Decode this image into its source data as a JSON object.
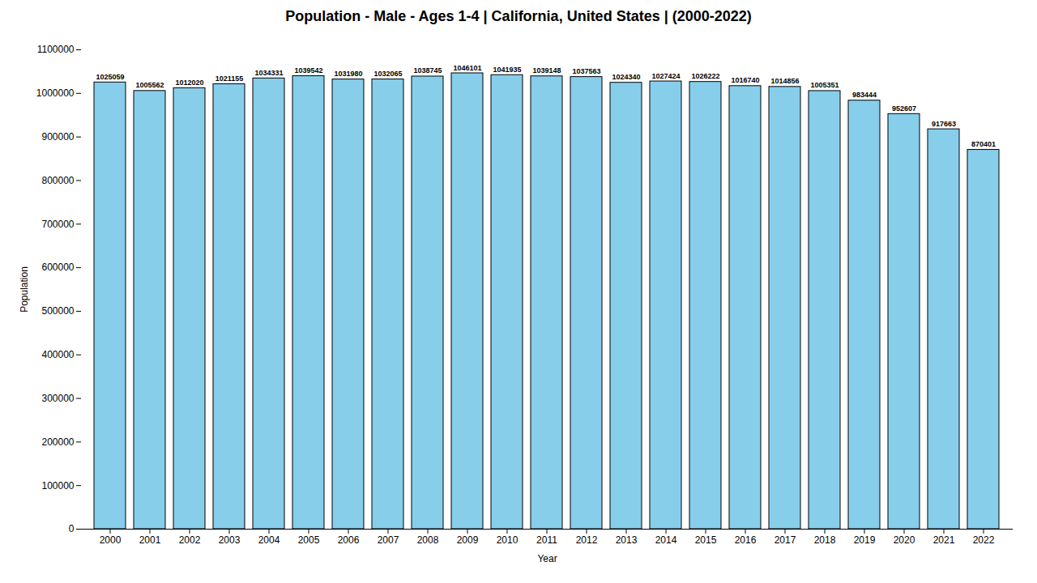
{
  "chart_data": {
    "type": "bar",
    "title": "Population - Male - Ages 1-4 | California, United States |  (2000-2022)",
    "xlabel": "Year",
    "ylabel": "Population",
    "categories": [
      "2000",
      "2001",
      "2002",
      "2003",
      "2004",
      "2005",
      "2006",
      "2007",
      "2008",
      "2009",
      "2010",
      "2011",
      "2012",
      "2013",
      "2014",
      "2015",
      "2016",
      "2017",
      "2018",
      "2019",
      "2020",
      "2021",
      "2022"
    ],
    "values": [
      1025059,
      1005562,
      1012020,
      1021155,
      1034331,
      1039542,
      1031980,
      1032065,
      1038745,
      1046101,
      1041935,
      1039148,
      1037563,
      1024340,
      1027424,
      1026222,
      1016740,
      1014856,
      1005351,
      983444,
      952607,
      917663,
      870401
    ],
    "color": "#87CEEB",
    "ylim": [
      0,
      1100000
    ],
    "yticks": [
      0,
      100000,
      200000,
      300000,
      400000,
      500000,
      600000,
      700000,
      800000,
      900000,
      1000000,
      1100000
    ],
    "grid": false,
    "data_labels": true
  }
}
